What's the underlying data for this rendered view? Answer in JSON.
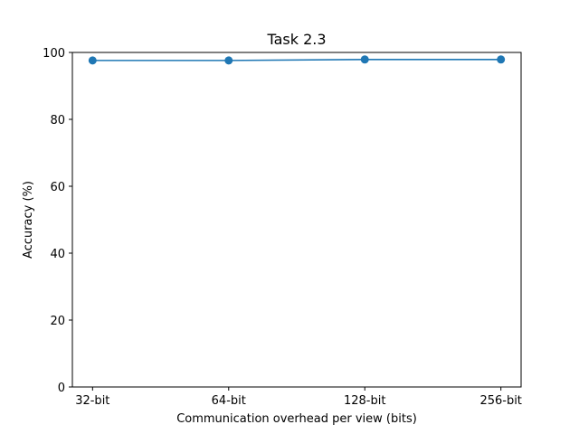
{
  "chart_data": {
    "type": "line",
    "title": "Task 2.3",
    "xlabel": "Communication overhead per view (bits)",
    "ylabel": "Accuracy (%)",
    "categories": [
      "32-bit",
      "64-bit",
      "128-bit",
      "256-bit"
    ],
    "series": [
      {
        "values": [
          97.6,
          97.6,
          97.9,
          97.9
        ],
        "color": "#1f77b4",
        "marker": "circle"
      }
    ],
    "ylim": [
      0,
      100
    ],
    "yticks": [
      0,
      20,
      40,
      60,
      80,
      100
    ],
    "grid": false,
    "legend": "none"
  }
}
